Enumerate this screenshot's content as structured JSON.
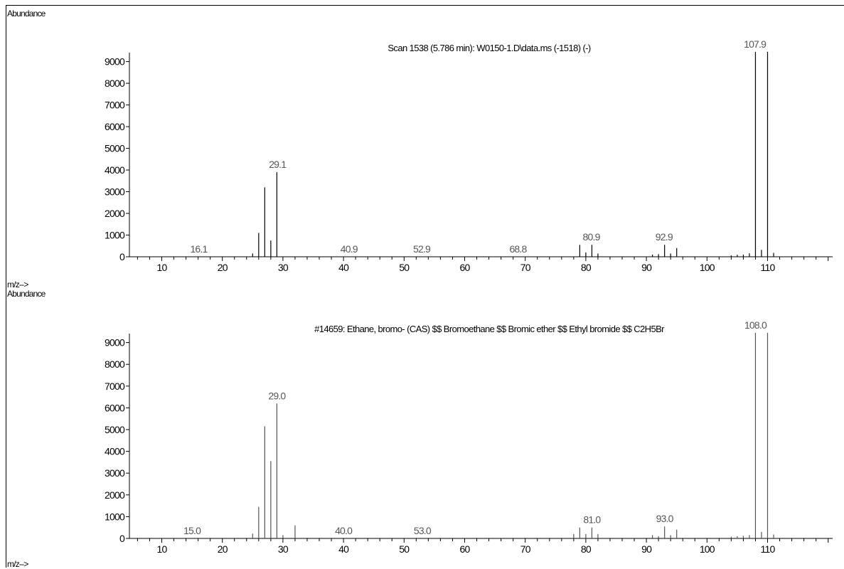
{
  "panels": [
    {
      "ylabel": "Abundance",
      "xlabel": "m/z-->"
    },
    {
      "ylabel": "Abundance",
      "xlabel": "m/z-->"
    }
  ],
  "chart_data": [
    {
      "type": "bar",
      "title": "Scan 1538 (5.786 min): W0150-1.D\\data.ms (-1518) (-)",
      "xlabel": "m/z-->",
      "ylabel": "Abundance",
      "xlim": [
        5,
        120
      ],
      "ylim": [
        0,
        10000
      ],
      "xticks": [
        10,
        20,
        30,
        40,
        50,
        60,
        70,
        80,
        90,
        100,
        110
      ],
      "yticks": [
        0,
        1000,
        2000,
        3000,
        4000,
        5000,
        6000,
        7000,
        8000,
        9000
      ],
      "peaks": [
        {
          "mz": 25,
          "abundance": 150
        },
        {
          "mz": 26,
          "abundance": 1100
        },
        {
          "mz": 27,
          "abundance": 3200
        },
        {
          "mz": 28,
          "abundance": 750
        },
        {
          "mz": 29,
          "abundance": 3900
        },
        {
          "mz": 79,
          "abundance": 550
        },
        {
          "mz": 80,
          "abundance": 200
        },
        {
          "mz": 81,
          "abundance": 550
        },
        {
          "mz": 82,
          "abundance": 150
        },
        {
          "mz": 91,
          "abundance": 100
        },
        {
          "mz": 92,
          "abundance": 120
        },
        {
          "mz": 93,
          "abundance": 550
        },
        {
          "mz": 94,
          "abundance": 150
        },
        {
          "mz": 95,
          "abundance": 400
        },
        {
          "mz": 104,
          "abundance": 60
        },
        {
          "mz": 105,
          "abundance": 90
        },
        {
          "mz": 106,
          "abundance": 100
        },
        {
          "mz": 107,
          "abundance": 160
        },
        {
          "mz": 108,
          "abundance": 9450
        },
        {
          "mz": 109,
          "abundance": 320
        },
        {
          "mz": 110,
          "abundance": 9450
        },
        {
          "mz": 111,
          "abundance": 180
        }
      ],
      "annotations": [
        {
          "text": "16.1",
          "mz": 16.1
        },
        {
          "text": "29.1",
          "mz": 29.1
        },
        {
          "text": "40.9",
          "mz": 40.9
        },
        {
          "text": "52.9",
          "mz": 52.9
        },
        {
          "text": "68.8",
          "mz": 68.8
        },
        {
          "text": "80.9",
          "mz": 80.9
        },
        {
          "text": "92.9",
          "mz": 92.9
        },
        {
          "text": "107.9",
          "mz": 107.9
        }
      ],
      "colors": {
        "bars": "#000000",
        "labels": "#555555"
      }
    },
    {
      "type": "bar",
      "title": "#14659: Ethane, bromo- (CAS) $$ Bromoethane $$ Bromic ether $$ Ethyl bromide $$ C2H5Br",
      "xlabel": "m/z-->",
      "ylabel": "Abundance",
      "xlim": [
        5,
        120
      ],
      "ylim": [
        0,
        10000
      ],
      "xticks": [
        10,
        20,
        30,
        40,
        50,
        60,
        70,
        80,
        90,
        100,
        110
      ],
      "yticks": [
        0,
        1000,
        2000,
        3000,
        4000,
        5000,
        6000,
        7000,
        8000,
        9000
      ],
      "peaks": [
        {
          "mz": 25,
          "abundance": 220
        },
        {
          "mz": 26,
          "abundance": 1450
        },
        {
          "mz": 27,
          "abundance": 5150
        },
        {
          "mz": 28,
          "abundance": 3550
        },
        {
          "mz": 29,
          "abundance": 6200
        },
        {
          "mz": 30,
          "abundance": 150
        },
        {
          "mz": 32,
          "abundance": 600
        },
        {
          "mz": 78,
          "abundance": 200
        },
        {
          "mz": 79,
          "abundance": 500
        },
        {
          "mz": 80,
          "abundance": 200
        },
        {
          "mz": 81,
          "abundance": 500
        },
        {
          "mz": 82,
          "abundance": 200
        },
        {
          "mz": 91,
          "abundance": 150
        },
        {
          "mz": 92,
          "abundance": 100
        },
        {
          "mz": 93,
          "abundance": 550
        },
        {
          "mz": 94,
          "abundance": 150
        },
        {
          "mz": 95,
          "abundance": 400
        },
        {
          "mz": 104,
          "abundance": 80
        },
        {
          "mz": 105,
          "abundance": 100
        },
        {
          "mz": 106,
          "abundance": 120
        },
        {
          "mz": 107,
          "abundance": 150
        },
        {
          "mz": 108,
          "abundance": 9450
        },
        {
          "mz": 109,
          "abundance": 300
        },
        {
          "mz": 110,
          "abundance": 9450
        },
        {
          "mz": 111,
          "abundance": 180
        }
      ],
      "annotations": [
        {
          "text": "15.0",
          "mz": 15.0
        },
        {
          "text": "29.0",
          "mz": 29.0
        },
        {
          "text": "40.0",
          "mz": 40.0
        },
        {
          "text": "53.0",
          "mz": 53.0
        },
        {
          "text": "81.0",
          "mz": 81.0
        },
        {
          "text": "93.0",
          "mz": 93.0
        },
        {
          "text": "108.0",
          "mz": 108.0
        }
      ],
      "colors": {
        "bars": "#555555",
        "labels": "#555555"
      }
    }
  ]
}
